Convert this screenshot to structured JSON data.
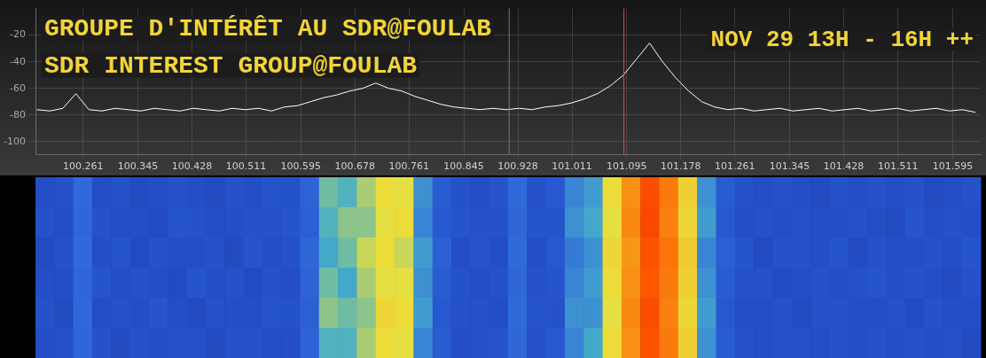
{
  "chart_data": {
    "type": "line",
    "title": "GROUPE D'INTÉRÊT AU SDR@FOULAB",
    "subtitle": "SDR INTEREST GROUP@FOULAB",
    "annotations": [
      {
        "text": "NOV 29 13H - 16H ++"
      }
    ],
    "color": "#ffffff",
    "grid": true,
    "xlim": [
      100.188,
      101.638
    ],
    "xticks": [
      100.261,
      100.345,
      100.428,
      100.511,
      100.595,
      100.678,
      100.761,
      100.845,
      100.928,
      101.011,
      101.095,
      101.178,
      101.261,
      101.345,
      101.428,
      101.511,
      101.595
    ],
    "ylim": [
      -110,
      0
    ],
    "yticks": [
      -100,
      -80,
      -60,
      -40,
      -20
    ],
    "x": [
      100.19,
      100.21,
      100.23,
      100.25,
      100.27,
      100.29,
      100.31,
      100.33,
      100.35,
      100.37,
      100.39,
      100.41,
      100.43,
      100.45,
      100.47,
      100.49,
      100.51,
      100.53,
      100.55,
      100.57,
      100.59,
      100.61,
      100.63,
      100.65,
      100.67,
      100.69,
      100.71,
      100.73,
      100.75,
      100.77,
      100.79,
      100.81,
      100.83,
      100.85,
      100.87,
      100.89,
      100.91,
      100.93,
      100.95,
      100.97,
      100.99,
      101.01,
      101.03,
      101.05,
      101.07,
      101.09,
      101.11,
      101.13,
      101.15,
      101.17,
      101.19,
      101.21,
      101.23,
      101.25,
      101.27,
      101.29,
      101.31,
      101.33,
      101.35,
      101.37,
      101.39,
      101.41,
      101.43,
      101.45,
      101.47,
      101.49,
      101.51,
      101.53,
      101.55,
      101.57,
      101.59,
      101.61,
      101.63
    ],
    "values": [
      -76,
      -77,
      -75,
      -64,
      -76,
      -77,
      -75,
      -76,
      -77,
      -75,
      -76,
      -77,
      -75,
      -76,
      -77,
      -75,
      -76,
      -75,
      -77,
      -74,
      -73,
      -70,
      -67,
      -65,
      -62,
      -60,
      -56,
      -60,
      -62,
      -66,
      -69,
      -72,
      -74,
      -75,
      -76,
      -75,
      -76,
      -75,
      -76,
      -74,
      -73,
      -71,
      -68,
      -64,
      -58,
      -50,
      -38,
      -26,
      -40,
      -52,
      -62,
      -70,
      -74,
      -76,
      -75,
      -77,
      -76,
      -75,
      -77,
      -76,
      -75,
      -77,
      -76,
      -75,
      -77,
      -76,
      -75,
      -77,
      -76,
      -75,
      -77,
      -76,
      -78
    ],
    "markers": [
      {
        "x": 101.09,
        "color": "#e04848"
      },
      {
        "x": 100.914,
        "color": "#6a7a9a"
      }
    ],
    "waterfall": {
      "bins": [
        100.188,
        100.217,
        100.246,
        100.275,
        100.304,
        100.333,
        100.362,
        100.391,
        100.42,
        100.449,
        100.478,
        100.507,
        100.536,
        100.565,
        100.594,
        100.623,
        100.652,
        100.681,
        100.71,
        100.739,
        100.768,
        100.797,
        100.826,
        100.855,
        100.884,
        100.913,
        100.942,
        100.971,
        101.0,
        101.029,
        101.058,
        101.087,
        101.116,
        101.145,
        101.174,
        101.203,
        101.232,
        101.261,
        101.29,
        101.319,
        101.348,
        101.377,
        101.406,
        101.435,
        101.464,
        101.493,
        101.522,
        101.551,
        101.58,
        101.609,
        101.638
      ],
      "zlim": [
        -90,
        -20
      ],
      "rows": [
        [
          -78,
          -77,
          -70,
          -78,
          -77,
          -79,
          -78,
          -77,
          -78,
          -79,
          -77,
          -78,
          -76,
          -77,
          -72,
          -62,
          -63,
          -60,
          -57,
          -58,
          -66,
          -74,
          -77,
          -78,
          -76,
          -70,
          -77,
          -75,
          -67,
          -65,
          -57,
          -45,
          -35,
          -42,
          -55,
          -66,
          -74,
          -77,
          -78,
          -77,
          -78,
          -79,
          -77,
          -78,
          -77,
          -78,
          -77,
          -79,
          -78,
          -77
        ],
        [
          -77,
          -78,
          -71,
          -77,
          -78,
          -78,
          -79,
          -76,
          -77,
          -78,
          -78,
          -77,
          -77,
          -76,
          -73,
          -63,
          -61,
          -61,
          -58,
          -57,
          -67,
          -75,
          -76,
          -77,
          -77,
          -71,
          -76,
          -76,
          -66,
          -64,
          -58,
          -44,
          -34,
          -43,
          -56,
          -65,
          -75,
          -78,
          -77,
          -78,
          -77,
          -78,
          -78,
          -77,
          -78,
          -79,
          -76,
          -78,
          -77,
          -78
        ],
        [
          -79,
          -77,
          -70,
          -78,
          -76,
          -79,
          -77,
          -78,
          -78,
          -77,
          -79,
          -76,
          -78,
          -77,
          -71,
          -64,
          -62,
          -59,
          -57,
          -59,
          -65,
          -73,
          -78,
          -76,
          -78,
          -70,
          -78,
          -75,
          -68,
          -66,
          -56,
          -46,
          -36,
          -41,
          -54,
          -67,
          -73,
          -76,
          -79,
          -77,
          -77,
          -78,
          -76,
          -79,
          -77,
          -78,
          -78,
          -77,
          -78,
          -76
        ],
        [
          -78,
          -78,
          -71,
          -76,
          -78,
          -77,
          -78,
          -79,
          -76,
          -78,
          -77,
          -79,
          -77,
          -78,
          -72,
          -62,
          -64,
          -60,
          -58,
          -58,
          -66,
          -74,
          -77,
          -78,
          -77,
          -71,
          -77,
          -76,
          -67,
          -65,
          -57,
          -45,
          -37,
          -42,
          -55,
          -66,
          -74,
          -77,
          -77,
          -79,
          -78,
          -77,
          -78,
          -77,
          -76,
          -78,
          -77,
          -78,
          -79,
          -77
        ],
        [
          -77,
          -79,
          -70,
          -78,
          -77,
          -78,
          -76,
          -78,
          -79,
          -77,
          -78,
          -78,
          -76,
          -77,
          -73,
          -61,
          -62,
          -61,
          -56,
          -57,
          -65,
          -75,
          -77,
          -77,
          -78,
          -70,
          -76,
          -77,
          -66,
          -66,
          -58,
          -44,
          -35,
          -43,
          -56,
          -65,
          -75,
          -78,
          -78,
          -77,
          -79,
          -77,
          -77,
          -78,
          -78,
          -77,
          -79,
          -77,
          -78,
          -78
        ],
        [
          -78,
          -77,
          -71,
          -77,
          -79,
          -77,
          -78,
          -77,
          -77,
          -79,
          -77,
          -77,
          -78,
          -78,
          -72,
          -63,
          -63,
          -60,
          -57,
          -58,
          -67,
          -74,
          -78,
          -77,
          -76,
          -71,
          -77,
          -75,
          -67,
          -64,
          -57,
          -45,
          -36,
          -42,
          -55,
          -66,
          -74,
          -77,
          -78,
          -77,
          -77,
          -78,
          -77,
          -78,
          -77,
          -78,
          -77,
          -78,
          -77,
          -79
        ]
      ]
    }
  }
}
